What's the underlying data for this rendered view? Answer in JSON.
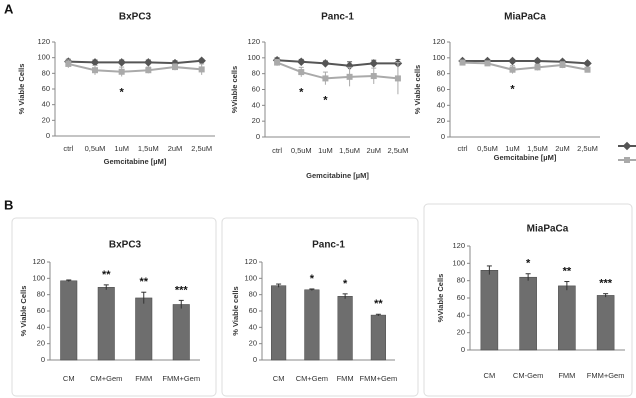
{
  "panel_labels": [
    "A",
    "B"
  ],
  "chart_data": [
    {
      "type": "line",
      "title": "BxPC3",
      "ylabel": "% Viable Cells",
      "xlabel": "Gemcitabine [µM]",
      "categories": [
        "ctrl",
        "0,5uM",
        "1uM",
        "1,5uM",
        "2uM",
        "2,5uM"
      ],
      "series": [
        {
          "color": "#555555",
          "values": [
            95,
            94,
            94,
            94,
            93,
            96
          ],
          "errors": [
            3,
            3,
            3,
            3,
            3,
            2
          ]
        },
        {
          "color": "#aaaaaa",
          "values": [
            92,
            84,
            82,
            84,
            88,
            85
          ],
          "errors": [
            5,
            6,
            6,
            4,
            4,
            7
          ]
        }
      ],
      "significance": [
        null,
        null,
        "*",
        null,
        null,
        null
      ],
      "ylim": [
        0,
        120
      ],
      "yticks": [
        0,
        20,
        40,
        60,
        80,
        100,
        120
      ]
    },
    {
      "type": "line",
      "title": "Panc-1",
      "ylabel": "%Viable cells",
      "xlabel": "Gemcitabine [µM]",
      "categories": [
        "ctrl",
        "0,5uM",
        "1uM",
        "1,5uM",
        "2uM",
        "2,5uM"
      ],
      "series": [
        {
          "color": "#555555",
          "values": [
            97,
            95,
            93,
            90,
            93,
            93
          ],
          "errors": [
            3,
            3,
            3,
            5,
            4,
            5
          ]
        },
        {
          "color": "#aaaaaa",
          "values": [
            94,
            82,
            74,
            76,
            77,
            74
          ],
          "errors": [
            4,
            6,
            8,
            12,
            10,
            20
          ]
        }
      ],
      "significance": [
        null,
        "*",
        "*",
        null,
        null,
        null
      ],
      "ylim": [
        0,
        120
      ],
      "yticks": [
        0,
        20,
        40,
        60,
        80,
        100,
        120
      ]
    },
    {
      "type": "line",
      "title": "MiaPaCa",
      "ylabel": "% Viable cells",
      "xlabel": "Gemcitabine [µM]",
      "categories": [
        "ctrl",
        "0,5uM",
        "1uM",
        "1,5uM",
        "2uM",
        "2,5uM"
      ],
      "series": [
        {
          "color": "#555555",
          "values": [
            96,
            96,
            96,
            96,
            95,
            93
          ],
          "errors": [
            2,
            2,
            2,
            2,
            2,
            2
          ]
        },
        {
          "color": "#aaaaaa",
          "values": [
            94,
            93,
            85,
            88,
            91,
            85
          ],
          "errors": [
            3,
            3,
            5,
            4,
            4,
            3
          ]
        }
      ],
      "significance": [
        null,
        null,
        "*",
        null,
        null,
        null
      ],
      "ylim": [
        0,
        120
      ],
      "yticks": [
        0,
        20,
        40,
        60,
        80,
        100,
        120
      ]
    },
    {
      "type": "bar",
      "title": "BxPC3",
      "ylabel": "% Viable Cells",
      "color": "#6e6e6e",
      "categories": [
        "CM",
        "CM+Gem",
        "FMM",
        "FMM+Gem"
      ],
      "values": [
        97,
        89,
        76,
        68
      ],
      "errors": [
        1,
        3,
        7,
        5
      ],
      "significance": [
        null,
        "**",
        "**",
        "***"
      ],
      "ylim": [
        0,
        120
      ],
      "yticks": [
        0,
        20,
        40,
        60,
        80,
        100,
        120
      ]
    },
    {
      "type": "bar",
      "title": "Panc-1",
      "ylabel": "% Viable cells",
      "color": "#6e6e6e",
      "categories": [
        "CM",
        "CM+Gem",
        "FMM",
        "FMM+Gem"
      ],
      "values": [
        91,
        86,
        78,
        55
      ],
      "errors": [
        2,
        1,
        3,
        1
      ],
      "significance": [
        null,
        "*",
        "*",
        "**"
      ],
      "ylim": [
        0,
        120
      ],
      "yticks": [
        0,
        20,
        40,
        60,
        80,
        100,
        120
      ]
    },
    {
      "type": "bar",
      "title": "MiaPaCa",
      "ylabel": "%Viable Cells",
      "color": "#6e6e6e",
      "categories": [
        "CM",
        "CM-Gem",
        "FMM",
        "FMM+Gem"
      ],
      "values": [
        92,
        84,
        74,
        63
      ],
      "errors": [
        5,
        4,
        5,
        2
      ],
      "significance": [
        null,
        "*",
        "**",
        "***"
      ],
      "ylim": [
        0,
        120
      ],
      "yticks": [
        0,
        20,
        40,
        60,
        80,
        100,
        120
      ]
    }
  ]
}
